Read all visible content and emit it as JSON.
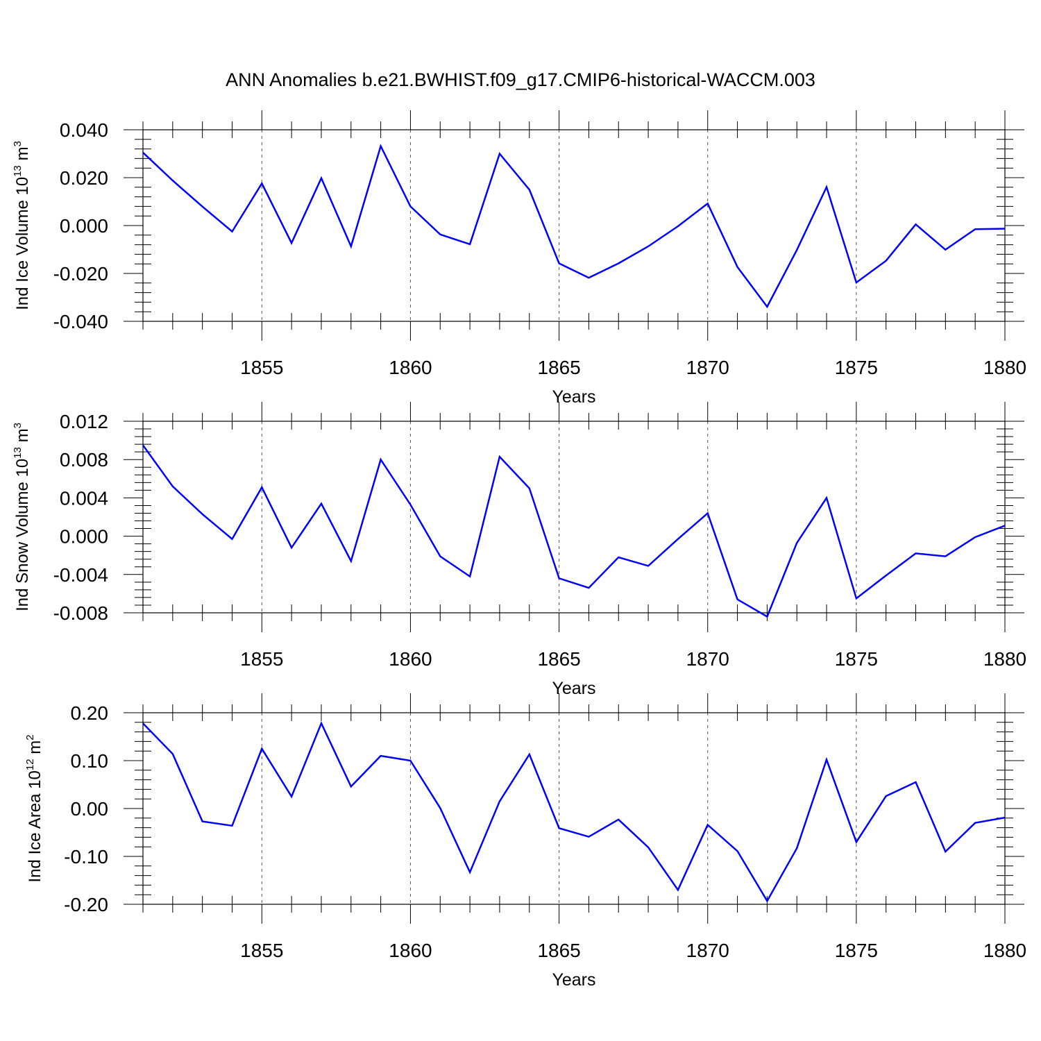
{
  "title": "ANN Anomalies b.e21.BWHIST.f09_g17.CMIP6-historical-WACCM.003",
  "chart_data": [
    {
      "type": "line",
      "ylabel": {
        "prefix": "Ind Ice Volume 10",
        "exponent": "13",
        "unit": " m",
        "unit_exponent": "3"
      },
      "xlabel": "Years",
      "xlim": [
        1851,
        1880
      ],
      "ylim": [
        -0.04,
        0.04
      ],
      "yticks": [
        0.04,
        0.02,
        0.0,
        -0.02,
        -0.04
      ],
      "yticklabels": [
        "0.040",
        "0.020",
        "0.000",
        "-0.020",
        "-0.040"
      ],
      "xticks": [
        1855,
        1860,
        1865,
        1870,
        1875,
        1880
      ],
      "xticklabels": [
        "1855",
        "1860",
        "1865",
        "1870",
        "1875",
        "1880"
      ],
      "line_color": "#0000ff",
      "x": [
        1851,
        1852,
        1853,
        1854,
        1855,
        1856,
        1857,
        1858,
        1859,
        1860,
        1861,
        1862,
        1863,
        1864,
        1865,
        1866,
        1867,
        1868,
        1869,
        1870,
        1871,
        1872,
        1873,
        1874,
        1875,
        1876,
        1877,
        1878,
        1879,
        1880
      ],
      "values": [
        0.0305,
        0.0188,
        0.0079,
        -0.0025,
        0.0176,
        -0.0073,
        0.0198,
        -0.0087,
        0.0332,
        0.008,
        -0.0037,
        -0.0078,
        0.03,
        0.015,
        -0.0158,
        -0.0218,
        -0.0158,
        -0.0087,
        -0.0003,
        0.0092,
        -0.0173,
        -0.0339,
        -0.0102,
        0.0161,
        -0.0238,
        -0.0147,
        0.0005,
        -0.0101,
        -0.0015,
        -0.0013
      ]
    },
    {
      "type": "line",
      "ylabel": {
        "prefix": "Ind Snow Volume 10",
        "exponent": "13",
        "unit": " m",
        "unit_exponent": "3"
      },
      "xlabel": "Years",
      "xlim": [
        1851,
        1880
      ],
      "ylim": [
        -0.009,
        0.013
      ],
      "yticks": [
        0.012,
        0.008,
        0.004,
        0.0,
        -0.004,
        -0.008
      ],
      "yticklabels": [
        "0.012",
        "0.008",
        "0.004",
        "0.000",
        "-0.004",
        "-0.008"
      ],
      "xticks": [
        1855,
        1860,
        1865,
        1870,
        1875,
        1880
      ],
      "xticklabels": [
        "1855",
        "1860",
        "1865",
        "1870",
        "1875",
        "1880"
      ],
      "line_color": "#0000ff",
      "x": [
        1851,
        1852,
        1853,
        1854,
        1855,
        1856,
        1857,
        1858,
        1859,
        1860,
        1861,
        1862,
        1863,
        1864,
        1865,
        1866,
        1867,
        1868,
        1869,
        1870,
        1871,
        1872,
        1873,
        1874,
        1875,
        1876,
        1877,
        1878,
        1879,
        1880
      ],
      "values": [
        0.0095,
        0.0052,
        0.0023,
        -0.0003,
        0.0051,
        -0.0012,
        0.0034,
        -0.0026,
        0.008,
        0.0033,
        -0.0021,
        -0.0042,
        0.0083,
        0.005,
        -0.0044,
        -0.0054,
        -0.0022,
        -0.0031,
        -0.0003,
        0.0024,
        -0.0066,
        -0.0084,
        -0.0007,
        0.004,
        -0.0065,
        -0.0041,
        -0.0018,
        -0.0021,
        -0.0001,
        0.0011
      ]
    },
    {
      "type": "line",
      "ylabel": {
        "prefix": "Ind Ice Area 10",
        "exponent": "12",
        "unit": " m",
        "unit_exponent": "2"
      },
      "xlabel": "Years",
      "xlim": [
        1851,
        1880
      ],
      "ylim": [
        -0.2,
        0.2
      ],
      "yticks": [
        0.2,
        0.1,
        0.0,
        -0.1,
        -0.2
      ],
      "yticklabels": [
        "0.20",
        "0.10",
        "0.00",
        "-0.10",
        "-0.20"
      ],
      "xticks": [
        1855,
        1860,
        1865,
        1870,
        1875,
        1880
      ],
      "xticklabels": [
        "1855",
        "1860",
        "1865",
        "1870",
        "1875",
        "1880"
      ],
      "line_color": "#0000ff",
      "x": [
        1851,
        1852,
        1853,
        1854,
        1855,
        1856,
        1857,
        1858,
        1859,
        1860,
        1861,
        1862,
        1863,
        1864,
        1865,
        1866,
        1867,
        1868,
        1869,
        1870,
        1871,
        1872,
        1873,
        1874,
        1875,
        1876,
        1877,
        1878,
        1879,
        1880
      ],
      "values": [
        0.178,
        0.114,
        -0.027,
        -0.036,
        0.125,
        0.025,
        0.178,
        0.046,
        0.11,
        0.1,
        0.001,
        -0.133,
        0.015,
        0.113,
        -0.041,
        -0.059,
        -0.023,
        -0.081,
        -0.17,
        -0.034,
        -0.089,
        -0.193,
        -0.083,
        0.102,
        -0.07,
        0.026,
        0.055,
        -0.09,
        -0.03,
        -0.019
      ]
    }
  ]
}
